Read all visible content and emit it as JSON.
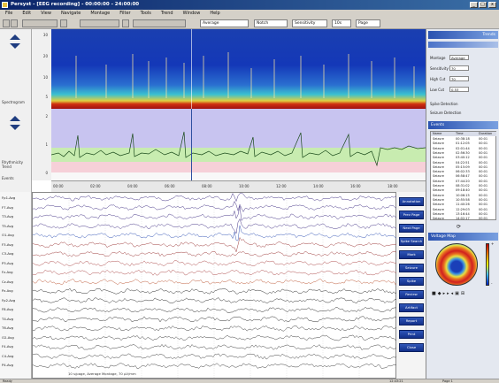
{
  "window": {
    "title": "Persyst - [EEG recording] - 00:00:00 - 24:00:00",
    "min_label": "_",
    "max_label": "□",
    "close_label": "x"
  },
  "menu": {
    "items": [
      "File",
      "Edit",
      "View",
      "Navigate",
      "Montage",
      "Filter",
      "Tools",
      "Trend",
      "Window",
      "Help"
    ]
  },
  "toolbar": {
    "montage_value": "Average",
    "filter_value": "Notch",
    "sensitivity_value": "Sensitivity",
    "zoom_value": "10s",
    "page_value": "Page"
  },
  "left": {
    "spectro_label": "Spectrogram",
    "trend_label": "Rhythmicity",
    "trend_label2": "Trend",
    "events_label": "Events",
    "spectro_ticks": [
      "30",
      "20",
      "10",
      "5"
    ],
    "trend_ticks": [
      "2",
      "1",
      "0"
    ]
  },
  "time_axis": {
    "ticks": [
      "00:00",
      "02:00",
      "04:00",
      "06:00",
      "08:00",
      "10:00",
      "12:00",
      "14:00",
      "16:00",
      "18:00"
    ]
  },
  "eeg": {
    "channels": [
      "Fp1-Avg",
      "F7-Avg",
      "T3-Avg",
      "T5-Avg",
      "O1-Avg",
      "F3-Avg",
      "C3-Avg",
      "P3-Avg",
      "Fz-Avg",
      "Cz-Avg",
      "Pz-Avg",
      "Fp2-Avg",
      "F8-Avg",
      "T4-Avg",
      "T6-Avg",
      "O2-Avg",
      "F4-Avg",
      "C4-Avg",
      "P4-Avg"
    ],
    "footer": "10 s/page, Average Montage, 70 µV/mm"
  },
  "buttons": [
    "Annotation",
    "Prev Page",
    "Next Page",
    "Spike Search",
    "Mark",
    "Seizure",
    "Spike",
    "Review",
    "Artifact",
    "Report",
    "Print",
    "Close"
  ],
  "right": {
    "settings_header": "Trends",
    "fields": [
      {
        "label": "Montage",
        "value": "Average"
      },
      {
        "label": "Sensitivity",
        "value": "70"
      },
      {
        "label": "High Cut",
        "value": "70"
      },
      {
        "label": "Low Cut",
        "value": "0.53"
      }
    ],
    "checkbox1": "Spike Detection",
    "checkbox2": "Seizure Detection",
    "events_header": "Events",
    "table_headers": [
      "Name",
      "Time",
      "Duration"
    ],
    "table_rows": [
      [
        "Seizure",
        "00:38:18",
        "00:01"
      ],
      [
        "Seizure",
        "01:12:05",
        "00:01"
      ],
      [
        "Seizure",
        "02:01:44",
        "00:01"
      ],
      [
        "Seizure",
        "02:56:30",
        "00:01"
      ],
      [
        "Seizure",
        "03:40:12",
        "00:01"
      ],
      [
        "Seizure",
        "04:22:51",
        "00:01"
      ],
      [
        "Seizure",
        "05:15:09",
        "00:01"
      ],
      [
        "Seizure",
        "06:02:33",
        "00:01"
      ],
      [
        "Seizure",
        "06:58:47",
        "00:01"
      ],
      [
        "Seizure",
        "07:44:20",
        "00:01"
      ],
      [
        "Seizure",
        "08:31:02",
        "00:01"
      ],
      [
        "Seizure",
        "09:18:40",
        "00:01"
      ],
      [
        "Seizure",
        "10:06:15",
        "00:01"
      ],
      [
        "Seizure",
        "10:55:58",
        "00:01"
      ],
      [
        "Seizure",
        "11:40:26",
        "00:01"
      ],
      [
        "Seizure",
        "12:29:03",
        "00:01"
      ],
      [
        "Seizure",
        "13:16:44",
        "00:01"
      ],
      [
        "Seizure",
        "14:02:17",
        "00:01"
      ]
    ],
    "topo_header": "Voltage Map",
    "colorbar_max": "+",
    "colorbar_min": "-"
  },
  "status": {
    "left": "Ready",
    "time": "12:43:21",
    "page": "Page 1"
  },
  "colors": {
    "accent": "#1f3d80",
    "title_bar": "#0a246a",
    "panel_bg": "#e4e8f0",
    "trend_band_top": "#c8c4f0",
    "trend_band_mid": "#c8ecb0",
    "trend_band_low": "#f6d0d8"
  }
}
